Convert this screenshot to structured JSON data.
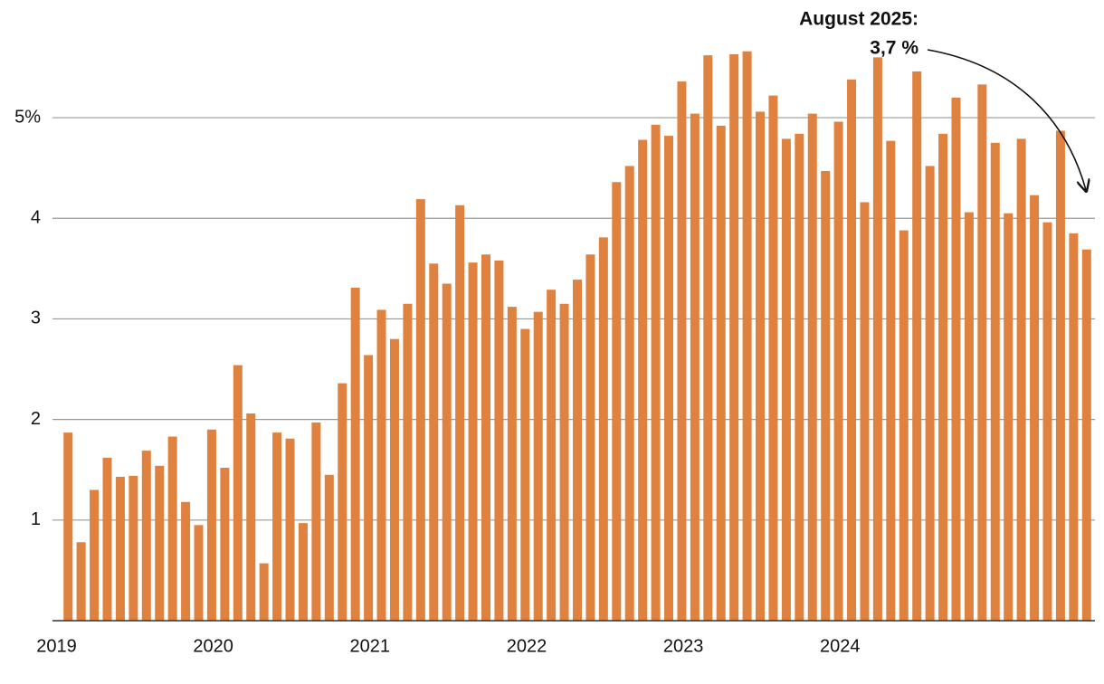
{
  "chart_data": {
    "type": "bar",
    "annotation": [
      "August 2025:",
      "3,7 %"
    ],
    "categories": [
      "2019",
      null,
      null,
      null,
      null,
      null,
      null,
      null,
      null,
      null,
      null,
      null,
      "2020",
      null,
      null,
      null,
      null,
      null,
      null,
      null,
      null,
      null,
      null,
      null,
      "2021",
      null,
      null,
      null,
      null,
      null,
      null,
      null,
      null,
      null,
      null,
      null,
      "2022",
      null,
      null,
      null,
      null,
      null,
      null,
      null,
      null,
      null,
      null,
      null,
      "2023",
      null,
      null,
      null,
      null,
      null,
      null,
      null,
      null,
      null,
      null,
      null,
      "2024",
      null,
      null,
      null,
      null,
      null,
      null,
      null,
      null,
      null,
      null,
      null,
      null,
      null,
      null,
      null,
      null,
      null,
      null
    ],
    "values": [
      1.87,
      0.78,
      1.3,
      1.62,
      1.43,
      1.44,
      1.69,
      1.54,
      1.83,
      1.18,
      0.95,
      1.9,
      1.52,
      2.54,
      2.06,
      0.57,
      1.87,
      1.81,
      0.97,
      1.97,
      1.45,
      2.36,
      3.31,
      2.64,
      3.09,
      2.8,
      3.15,
      4.19,
      3.55,
      3.35,
      4.13,
      3.56,
      3.64,
      3.58,
      3.12,
      2.9,
      3.07,
      3.29,
      3.15,
      3.39,
      3.64,
      3.81,
      4.36,
      4.52,
      4.78,
      4.93,
      4.82,
      5.36,
      5.04,
      5.62,
      4.92,
      5.63,
      5.66,
      5.06,
      5.22,
      4.79,
      4.84,
      5.04,
      4.47,
      4.96,
      5.38,
      4.16,
      5.6,
      4.77,
      3.88,
      5.46,
      4.52,
      4.84,
      5.2,
      4.06,
      5.33,
      4.75,
      4.05,
      4.79,
      4.23,
      3.96,
      4.87,
      3.85,
      3.69
    ],
    "color": "#e0823f",
    "ylim": [
      0,
      5.9
    ],
    "yticks": [
      1,
      2,
      3,
      4,
      {
        "value": 5,
        "label": "5%"
      }
    ],
    "grid": true
  }
}
